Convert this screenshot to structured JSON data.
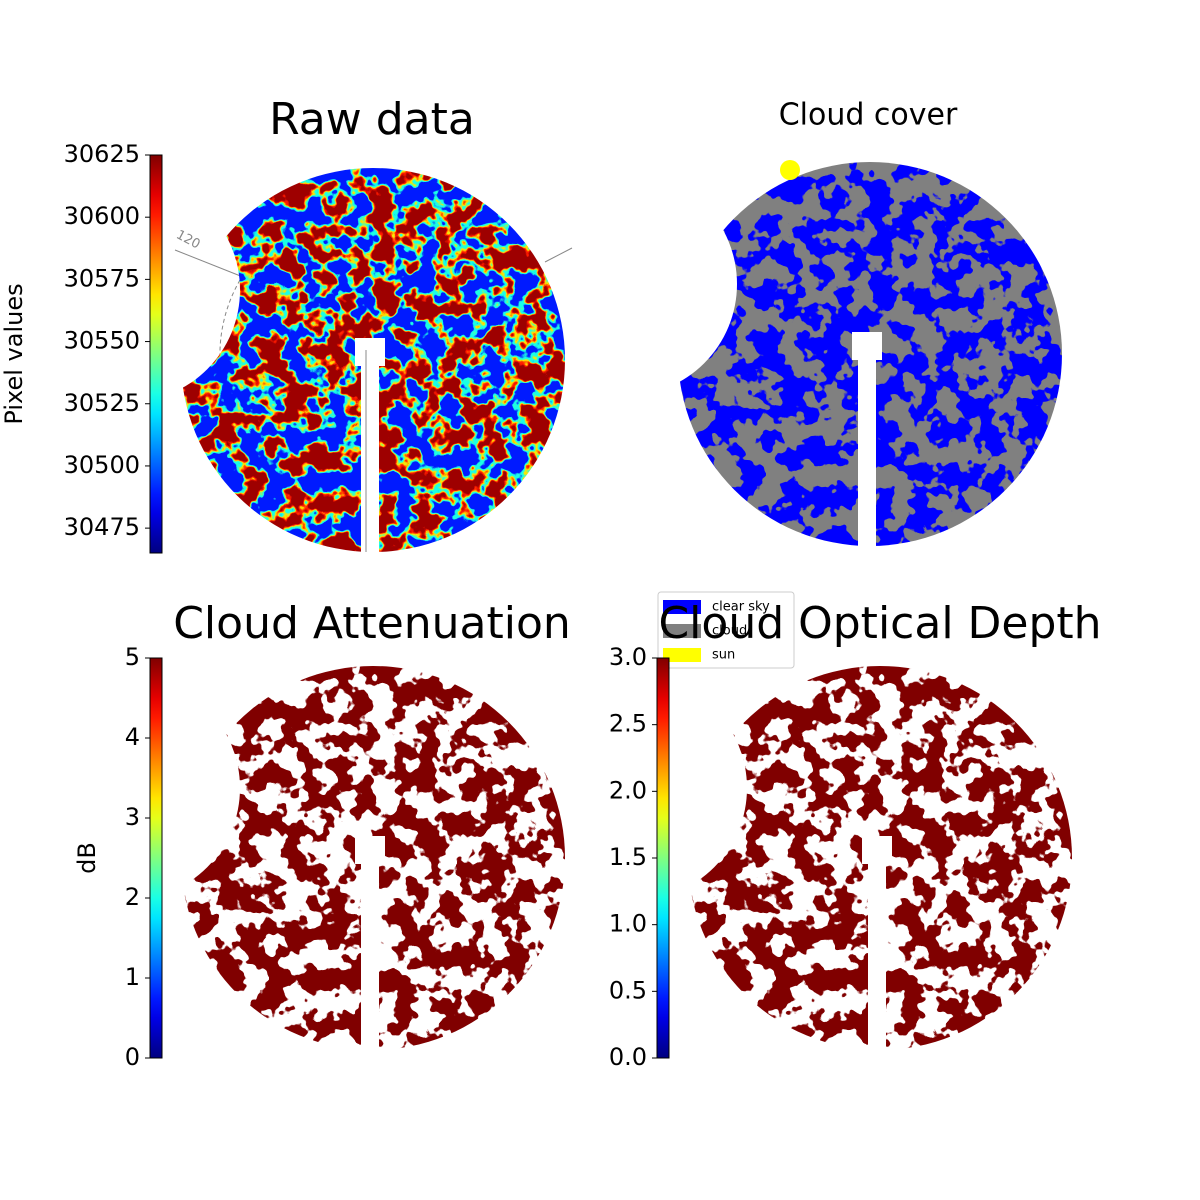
{
  "chart_data": [
    {
      "type": "image",
      "title": "Raw data",
      "annotation": "120",
      "colormap": "jet",
      "ylabel": "Pixel values",
      "ylim": [
        30465,
        30625
      ],
      "yticks": [
        30475,
        30500,
        30525,
        30550,
        30575,
        30600,
        30625
      ]
    },
    {
      "type": "image",
      "title": "Cloud cover",
      "series": [
        {
          "name": "clear sky",
          "color": "#0000ff"
        },
        {
          "name": "cloud",
          "color": "#808080"
        },
        {
          "name": "sun",
          "color": "#ffff00"
        }
      ]
    },
    {
      "type": "image",
      "title": "Cloud Attenuation",
      "colormap": "jet",
      "color": "#800000",
      "ylabel": "dB",
      "ylim": [
        0,
        5
      ],
      "yticks": [
        0,
        1,
        2,
        3,
        4,
        5
      ]
    },
    {
      "type": "image",
      "title": "Cloud Optical Depth",
      "colormap": "jet",
      "color": "#800000",
      "ylim": [
        0,
        3
      ],
      "yticks": [
        {
          "value": 0,
          "label": "0.0"
        },
        {
          "value": 0.5,
          "label": "0.5"
        },
        {
          "value": 1,
          "label": "1.0"
        },
        {
          "value": 1.5,
          "label": "1.5"
        },
        {
          "value": 2,
          "label": "2.0"
        },
        {
          "value": 2.5,
          "label": "2.5"
        },
        {
          "value": 3,
          "label": "3.0"
        }
      ]
    }
  ]
}
